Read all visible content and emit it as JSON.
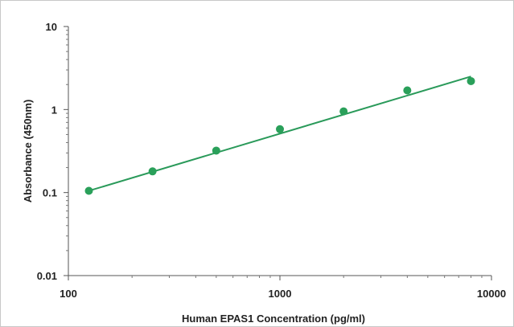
{
  "chart_data": {
    "type": "scatter",
    "xlabel": "Human EPAS1  Concentration (pg/ml)",
    "ylabel": "Absorbance (450nm)",
    "x_scale": "log",
    "y_scale": "log",
    "xlim": [
      100,
      10000
    ],
    "ylim": [
      0.01,
      10
    ],
    "x_ticks": [
      100,
      1000,
      10000
    ],
    "x_tick_labels": [
      "100",
      "1000",
      "10000"
    ],
    "y_ticks": [
      0.01,
      0.1,
      1,
      10
    ],
    "y_tick_labels": [
      "0.01",
      "0.1",
      "1",
      "10"
    ],
    "grid": false,
    "legend": "none",
    "series": [
      {
        "x": [
          125,
          250,
          500,
          1000,
          2000,
          4000,
          8000
        ],
        "y": [
          0.105,
          0.18,
          0.32,
          0.58,
          0.95,
          1.7,
          2.2
        ],
        "color": "#2aa05a"
      }
    ],
    "trendline": {
      "x": [
        125,
        8000
      ],
      "y": [
        0.105,
        2.5
      ],
      "color": "#2a9a5a"
    }
  }
}
